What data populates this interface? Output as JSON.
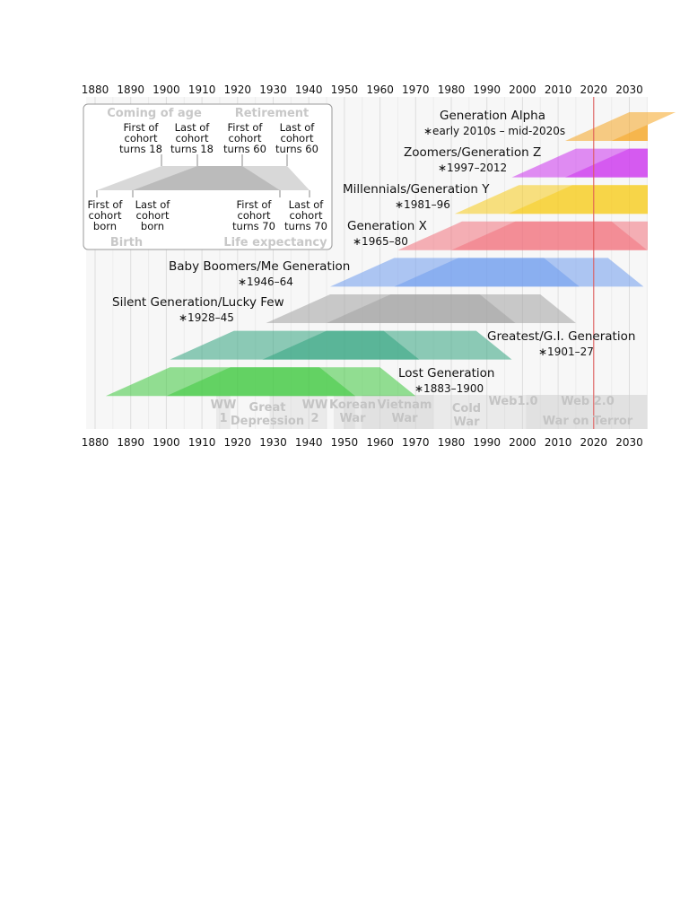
{
  "axis": {
    "min": 1880,
    "max": 2035,
    "ticks": [
      1880,
      1890,
      1900,
      1910,
      1920,
      1930,
      1940,
      1950,
      1960,
      1970,
      1980,
      1990,
      2000,
      2010,
      2020,
      2030
    ],
    "current_year_marker": 2020
  },
  "generations": [
    {
      "name": "Generation Alpha",
      "years": "∗early 2010s – mid-2020s",
      "birth_start": 2012,
      "birth_end": 2025,
      "color": "#f5a623"
    },
    {
      "name": "Zoomers/Generation Z",
      "years": "∗1997–2012",
      "birth_start": 1997,
      "birth_end": 2012,
      "color": "#cc33ee"
    },
    {
      "name": "Millennials/Generation Y",
      "years": "∗1981–96",
      "birth_start": 1981,
      "birth_end": 1996,
      "color": "#f7cc1b"
    },
    {
      "name": "Generation X",
      "years": "∗1965–80",
      "birth_start": 1965,
      "birth_end": 1980,
      "color": "#f2727e"
    },
    {
      "name": "Baby Boomers/Me Generation",
      "years": "∗1946–64",
      "birth_start": 1946,
      "birth_end": 1964,
      "color": "#6f9cef"
    },
    {
      "name": "Silent Generation/Lucky Few",
      "years": "∗1928–45",
      "birth_start": 1928,
      "birth_end": 1945,
      "color": "#a2a2a2"
    },
    {
      "name": "Greatest/G.I. Generation",
      "years": "∗1901–27",
      "birth_start": 1901,
      "birth_end": 1927,
      "color": "#33a47f"
    },
    {
      "name": "Lost Generation",
      "years": "∗1883–1900",
      "birth_start": 1883,
      "birth_end": 1900,
      "color": "#3ec83e"
    }
  ],
  "events": [
    {
      "lines": [
        "WW",
        "1"
      ],
      "start": 1914,
      "end": 1918
    },
    {
      "lines": [
        "Great",
        "Depression"
      ],
      "start": 1929,
      "end": 1939
    },
    {
      "lines": [
        "WW",
        "2"
      ],
      "start": 1939,
      "end": 1945
    },
    {
      "lines": [
        "Korean",
        "War"
      ],
      "start": 1950,
      "end": 1953
    },
    {
      "lines": [
        "Vietnam",
        "War"
      ],
      "start": 1955,
      "end": 1975
    },
    {
      "lines": [
        "Cold",
        "War"
      ],
      "start": 1947,
      "end": 1991
    },
    {
      "lines": [
        "Web1.0"
      ],
      "start": 1991,
      "end": 2004
    },
    {
      "lines": [
        "Web 2.0"
      ],
      "start": 2004,
      "end": 2035
    },
    {
      "lines": [
        "War on Terror"
      ],
      "start": 2001,
      "end": 2035
    }
  ],
  "legend": {
    "coming_of_age": "Coming of age",
    "retirement": "Retirement",
    "birth": "Birth",
    "life_expectancy": "Life expectancy",
    "first_turns_18": [
      "First of",
      "cohort",
      "turns 18"
    ],
    "last_turns_18": [
      "Last of",
      "cohort",
      "turns 18"
    ],
    "first_turns_60": [
      "First of",
      "cohort",
      "turns 60"
    ],
    "last_turns_60": [
      "Last of",
      "cohort",
      "turns 60"
    ],
    "first_born": [
      "First of",
      "cohort",
      "born"
    ],
    "last_born": [
      "Last of",
      "cohort",
      "born"
    ],
    "first_turns_70": [
      "First of",
      "cohort",
      "turns 70"
    ],
    "last_turns_70": [
      "Last of",
      "cohort",
      "turns 70"
    ]
  }
}
